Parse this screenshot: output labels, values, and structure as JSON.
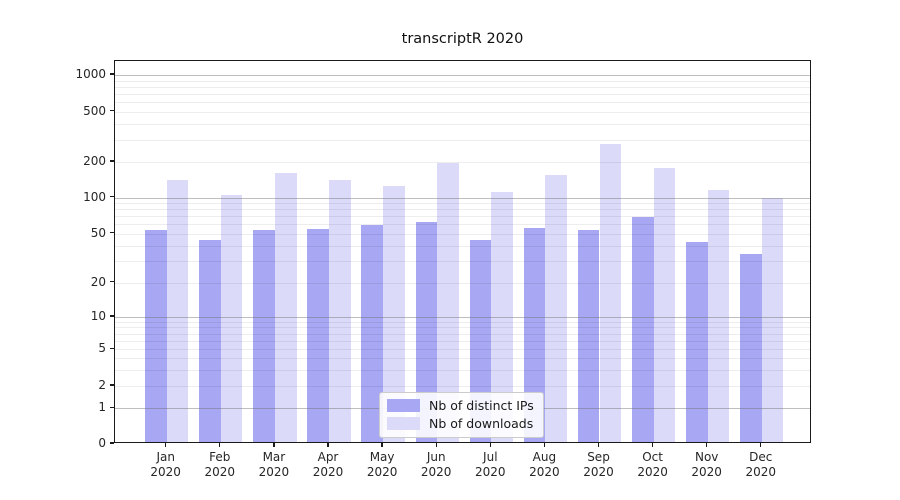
{
  "title": "transcriptR 2020",
  "chart_data": {
    "type": "bar",
    "categories": [
      "Jan",
      "Feb",
      "Mar",
      "Apr",
      "May",
      "Jun",
      "Jul",
      "Aug",
      "Sep",
      "Oct",
      "Nov",
      "Dec"
    ],
    "year": "2020",
    "series": [
      {
        "name": "Nb of distinct IPs",
        "color": "#a7a7f4",
        "values": [
          52,
          43,
          52,
          53,
          57,
          60,
          43,
          54,
          52,
          66,
          41,
          33
        ]
      },
      {
        "name": "Nb of downloads",
        "color": "#dbdbf9",
        "values": [
          135,
          102,
          155,
          135,
          121,
          190,
          108,
          150,
          270,
          170,
          112,
          95
        ]
      }
    ],
    "y_ticks": [
      0,
      1,
      2,
      5,
      10,
      20,
      50,
      100,
      200,
      500,
      1000
    ],
    "ylim": [
      0,
      1300
    ],
    "yscale": "symlog",
    "grid": "major+minor",
    "legend_position": "lower center"
  }
}
